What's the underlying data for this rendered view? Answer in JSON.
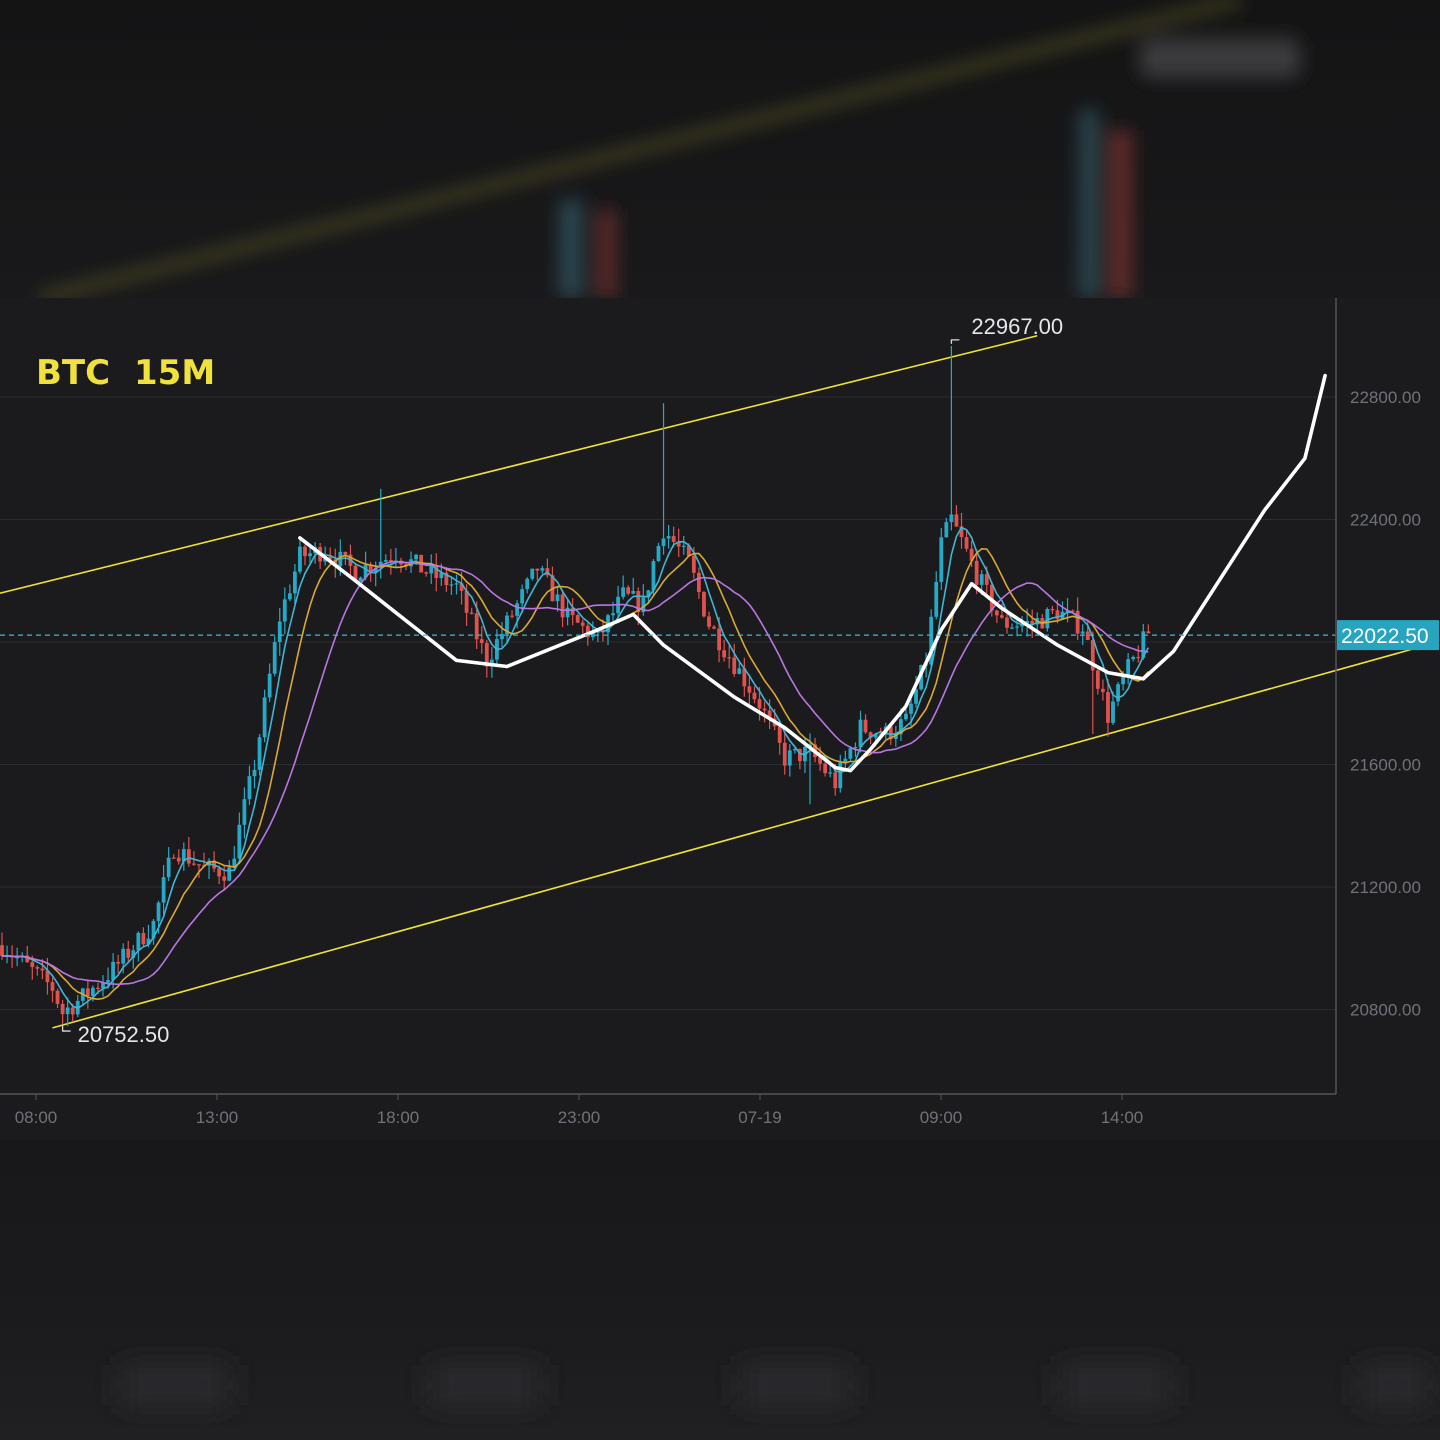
{
  "chart_data": {
    "type": "candlestick",
    "title": "BTC",
    "subtitle": "15M",
    "y_ticks": [
      20800,
      21200,
      21600,
      22000,
      22400,
      22800
    ],
    "y_tick_labels": [
      "20800.00",
      "21200.00",
      "21600.00",
      "",
      "22400.00",
      "22800.00"
    ],
    "ylim": [
      20480,
      23200
    ],
    "x_tick_labels": [
      "08:00",
      "13:00",
      "18:00",
      "23:00",
      "07-19",
      "09:00",
      "14:00"
    ],
    "current_price": 22022.5,
    "current_price_label": "22022.50",
    "annotations": [
      {
        "text": "22967.00",
        "kind": "high",
        "value": 22967.0
      },
      {
        "text": "20752.50",
        "kind": "low",
        "value": 20752.5
      }
    ],
    "candle_anchors": [
      [
        0,
        21010
      ],
      [
        10,
        20870
      ],
      [
        12,
        20790
      ],
      [
        16,
        20840
      ],
      [
        22,
        20930
      ],
      [
        30,
        21080
      ],
      [
        34,
        21330
      ],
      [
        40,
        21260
      ],
      [
        45,
        21250
      ],
      [
        50,
        21600
      ],
      [
        55,
        22080
      ],
      [
        59,
        22280
      ],
      [
        64,
        22300
      ],
      [
        70,
        22230
      ],
      [
        78,
        22290
      ],
      [
        84,
        22230
      ],
      [
        90,
        22180
      ],
      [
        96,
        21940
      ],
      [
        100,
        22060
      ],
      [
        106,
        22240
      ],
      [
        112,
        22080
      ],
      [
        118,
        22010
      ],
      [
        123,
        22150
      ],
      [
        127,
        22120
      ],
      [
        129,
        22260
      ],
      [
        131,
        22370
      ],
      [
        136,
        22260
      ],
      [
        140,
        22060
      ],
      [
        145,
        21930
      ],
      [
        150,
        21800
      ],
      [
        155,
        21620
      ],
      [
        160,
        21640
      ],
      [
        165,
        21540
      ],
      [
        170,
        21720
      ],
      [
        175,
        21700
      ],
      [
        179,
        21740
      ],
      [
        183,
        21940
      ],
      [
        186,
        22320
      ],
      [
        188,
        22400
      ],
      [
        193,
        22220
      ],
      [
        198,
        22060
      ],
      [
        204,
        22060
      ],
      [
        209,
        22100
      ],
      [
        214,
        22050
      ],
      [
        219,
        21760
      ],
      [
        223,
        21910
      ],
      [
        227,
        22030
      ]
    ],
    "candle_highlights": [
      {
        "index": 131,
        "high": 22780
      },
      {
        "index": 188,
        "high": 22967
      },
      {
        "index": 12,
        "low": 20752.5
      },
      {
        "index": 160,
        "low": 21470
      },
      {
        "index": 216,
        "low": 21700
      },
      {
        "index": 75,
        "high": 22500
      }
    ],
    "moving_average_periods": [
      5,
      10,
      20
    ],
    "moving_average_colors": [
      "#3fb6d3",
      "#d9a934",
      "#b877e0"
    ],
    "channel": {
      "color": "#f0e13c",
      "upper": [
        [
          -10,
          22120
        ],
        [
          205,
          23000
        ]
      ],
      "lower": [
        [
          10,
          20740
        ],
        [
          280,
          21980
        ]
      ]
    },
    "projection_path": {
      "color": "#ffffff",
      "points": [
        [
          59,
          22340
        ],
        [
          70,
          22200
        ],
        [
          90,
          21940
        ],
        [
          100,
          21920
        ],
        [
          118,
          22040
        ],
        [
          125,
          22090
        ],
        [
          131,
          21990
        ],
        [
          145,
          21820
        ],
        [
          155,
          21720
        ],
        [
          165,
          21590
        ],
        [
          168,
          21580
        ],
        [
          172,
          21650
        ],
        [
          179,
          21790
        ],
        [
          186,
          22040
        ],
        [
          192,
          22190
        ],
        [
          198,
          22110
        ],
        [
          209,
          21990
        ],
        [
          219,
          21900
        ],
        [
          226,
          21880
        ],
        [
          232,
          21970
        ],
        [
          241,
          22200
        ],
        [
          250,
          22430
        ],
        [
          258,
          22600
        ],
        [
          262,
          22870
        ]
      ]
    }
  }
}
